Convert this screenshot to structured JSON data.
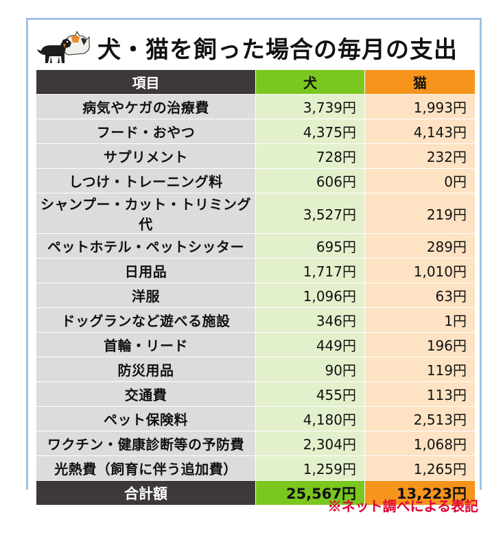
{
  "title": "犬・猫を飼った場合の毎月の支出",
  "header": {
    "item": "項目",
    "dog": "犬",
    "cat": "猫"
  },
  "rows": [
    {
      "item": "病気やケガの治療費",
      "dog": "3,739円",
      "cat": "1,993円"
    },
    {
      "item": "フード・おやつ",
      "dog": "4,375円",
      "cat": "4,143円"
    },
    {
      "item": "サプリメント",
      "dog": "728円",
      "cat": "232円"
    },
    {
      "item": "しつけ・トレーニング料",
      "dog": "606円",
      "cat": "0円"
    },
    {
      "item": "シャンプー・カット・トリミング代",
      "dog": "3,527円",
      "cat": "219円"
    },
    {
      "item": "ペットホテル・ペットシッター",
      "dog": "695円",
      "cat": "289円"
    },
    {
      "item": "日用品",
      "dog": "1,717円",
      "cat": "1,010円"
    },
    {
      "item": "洋服",
      "dog": "1,096円",
      "cat": "63円"
    },
    {
      "item": "ドッグランなど遊べる施設",
      "dog": "346円",
      "cat": "1円"
    },
    {
      "item": "首輪・リード",
      "dog": "449円",
      "cat": "196円"
    },
    {
      "item": "防災用品",
      "dog": "90円",
      "cat": "119円"
    },
    {
      "item": "交通費",
      "dog": "455円",
      "cat": "113円"
    },
    {
      "item": "ペット保険料",
      "dog": "4,180円",
      "cat": "2,513円"
    },
    {
      "item": "ワクチン・健康診断等の予防費",
      "dog": "2,304円",
      "cat": "1,068円"
    },
    {
      "item": "光熱費（飼育に伴う追加費）",
      "dog": "1,259円",
      "cat": "1,265円"
    }
  ],
  "total": {
    "item": "合計額",
    "dog": "25,567円",
    "cat": "13,223円"
  },
  "note": "※ネット調べによる表記",
  "icon": "dog-and-cat-icon",
  "colors": {
    "header_dark": "#3e3839",
    "dog_accent": "#7ac71f",
    "cat_accent": "#f6941c",
    "dog_cell": "#e3f0cc",
    "cat_cell": "#fde2c3",
    "item_cell": "#dcdcdc",
    "note_red": "#e00035",
    "frame_blue": "#9dc2e6"
  }
}
